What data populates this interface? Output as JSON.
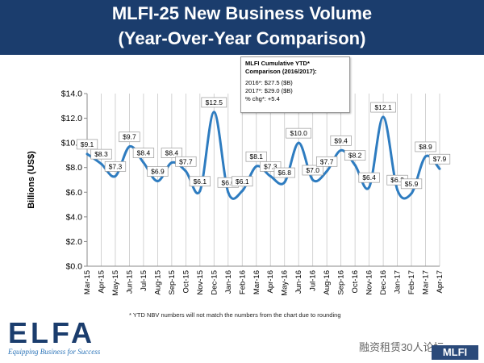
{
  "header": {
    "title_line1": "MLFI-25 New Business Volume",
    "title_line2": "(Year-Over-Year Comparison)"
  },
  "note_box": {
    "title": "MLFI Cumulative YTD* Comparison (2016/2017):",
    "line1": "2016*: $27.5 ($B)",
    "line2": "2017*: $29.0 ($B)",
    "line3": "% chg*: +5.4"
  },
  "footnote": "* YTD NBV numbers will not match the numbers from the chart due to rounding",
  "logo": {
    "name": "ELFA",
    "tagline": "Equipping Business for Success"
  },
  "watermark": {
    "text": "融资租赁30人论坛",
    "badge": "MLFI"
  },
  "colors": {
    "banner": "#1b3d6d",
    "line": "#2e7cc0",
    "grid": "#c8c8c8"
  },
  "chart_data": {
    "type": "line",
    "x": [
      "Mar-15",
      "Apr-15",
      "May-15",
      "Jun-15",
      "Jul-15",
      "Aug-15",
      "Sep-15",
      "Oct-15",
      "Nov-15",
      "Dec-15",
      "Jan-16",
      "Feb-16",
      "Mar-16",
      "Apr-16",
      "May-16",
      "Jun-16",
      "Jul-16",
      "Aug-16",
      "Sep-16",
      "Oct-16",
      "Nov-16",
      "Dec-16",
      "Jan-17",
      "Feb-17",
      "Mar-17",
      "Apr-17"
    ],
    "values": [
      9.1,
      8.3,
      7.3,
      9.7,
      8.4,
      6.9,
      8.4,
      7.7,
      6.1,
      12.5,
      6.0,
      6.1,
      8.1,
      7.3,
      6.8,
      10.0,
      7.0,
      7.7,
      9.4,
      8.2,
      6.4,
      12.1,
      6.2,
      5.9,
      8.9,
      7.9
    ],
    "data_labels": [
      "$9.1",
      "$8.3",
      "$7.3",
      "$9.7",
      "$8.4",
      "$6.9",
      "$8.4",
      "$7.7",
      "$6.1",
      "$12.5",
      "$6.0",
      "$6.1",
      "$8.1",
      "$7.3",
      "$6.8",
      "$10.0",
      "$7.0",
      "$7.7",
      "$9.4",
      "$8.2",
      "$6.4",
      "$12.1",
      "$6.2",
      "$5.9",
      "$8.9",
      "$7.9"
    ],
    "ylabel": "Billions (US$)",
    "xlabel": "",
    "ylim": [
      0,
      14
    ],
    "yticks": [
      "$0.0",
      "$2.0",
      "$4.0",
      "$6.0",
      "$8.0",
      "$10.0",
      "$12.0",
      "$14.0"
    ],
    "grid": "vertical",
    "legend": "none"
  }
}
